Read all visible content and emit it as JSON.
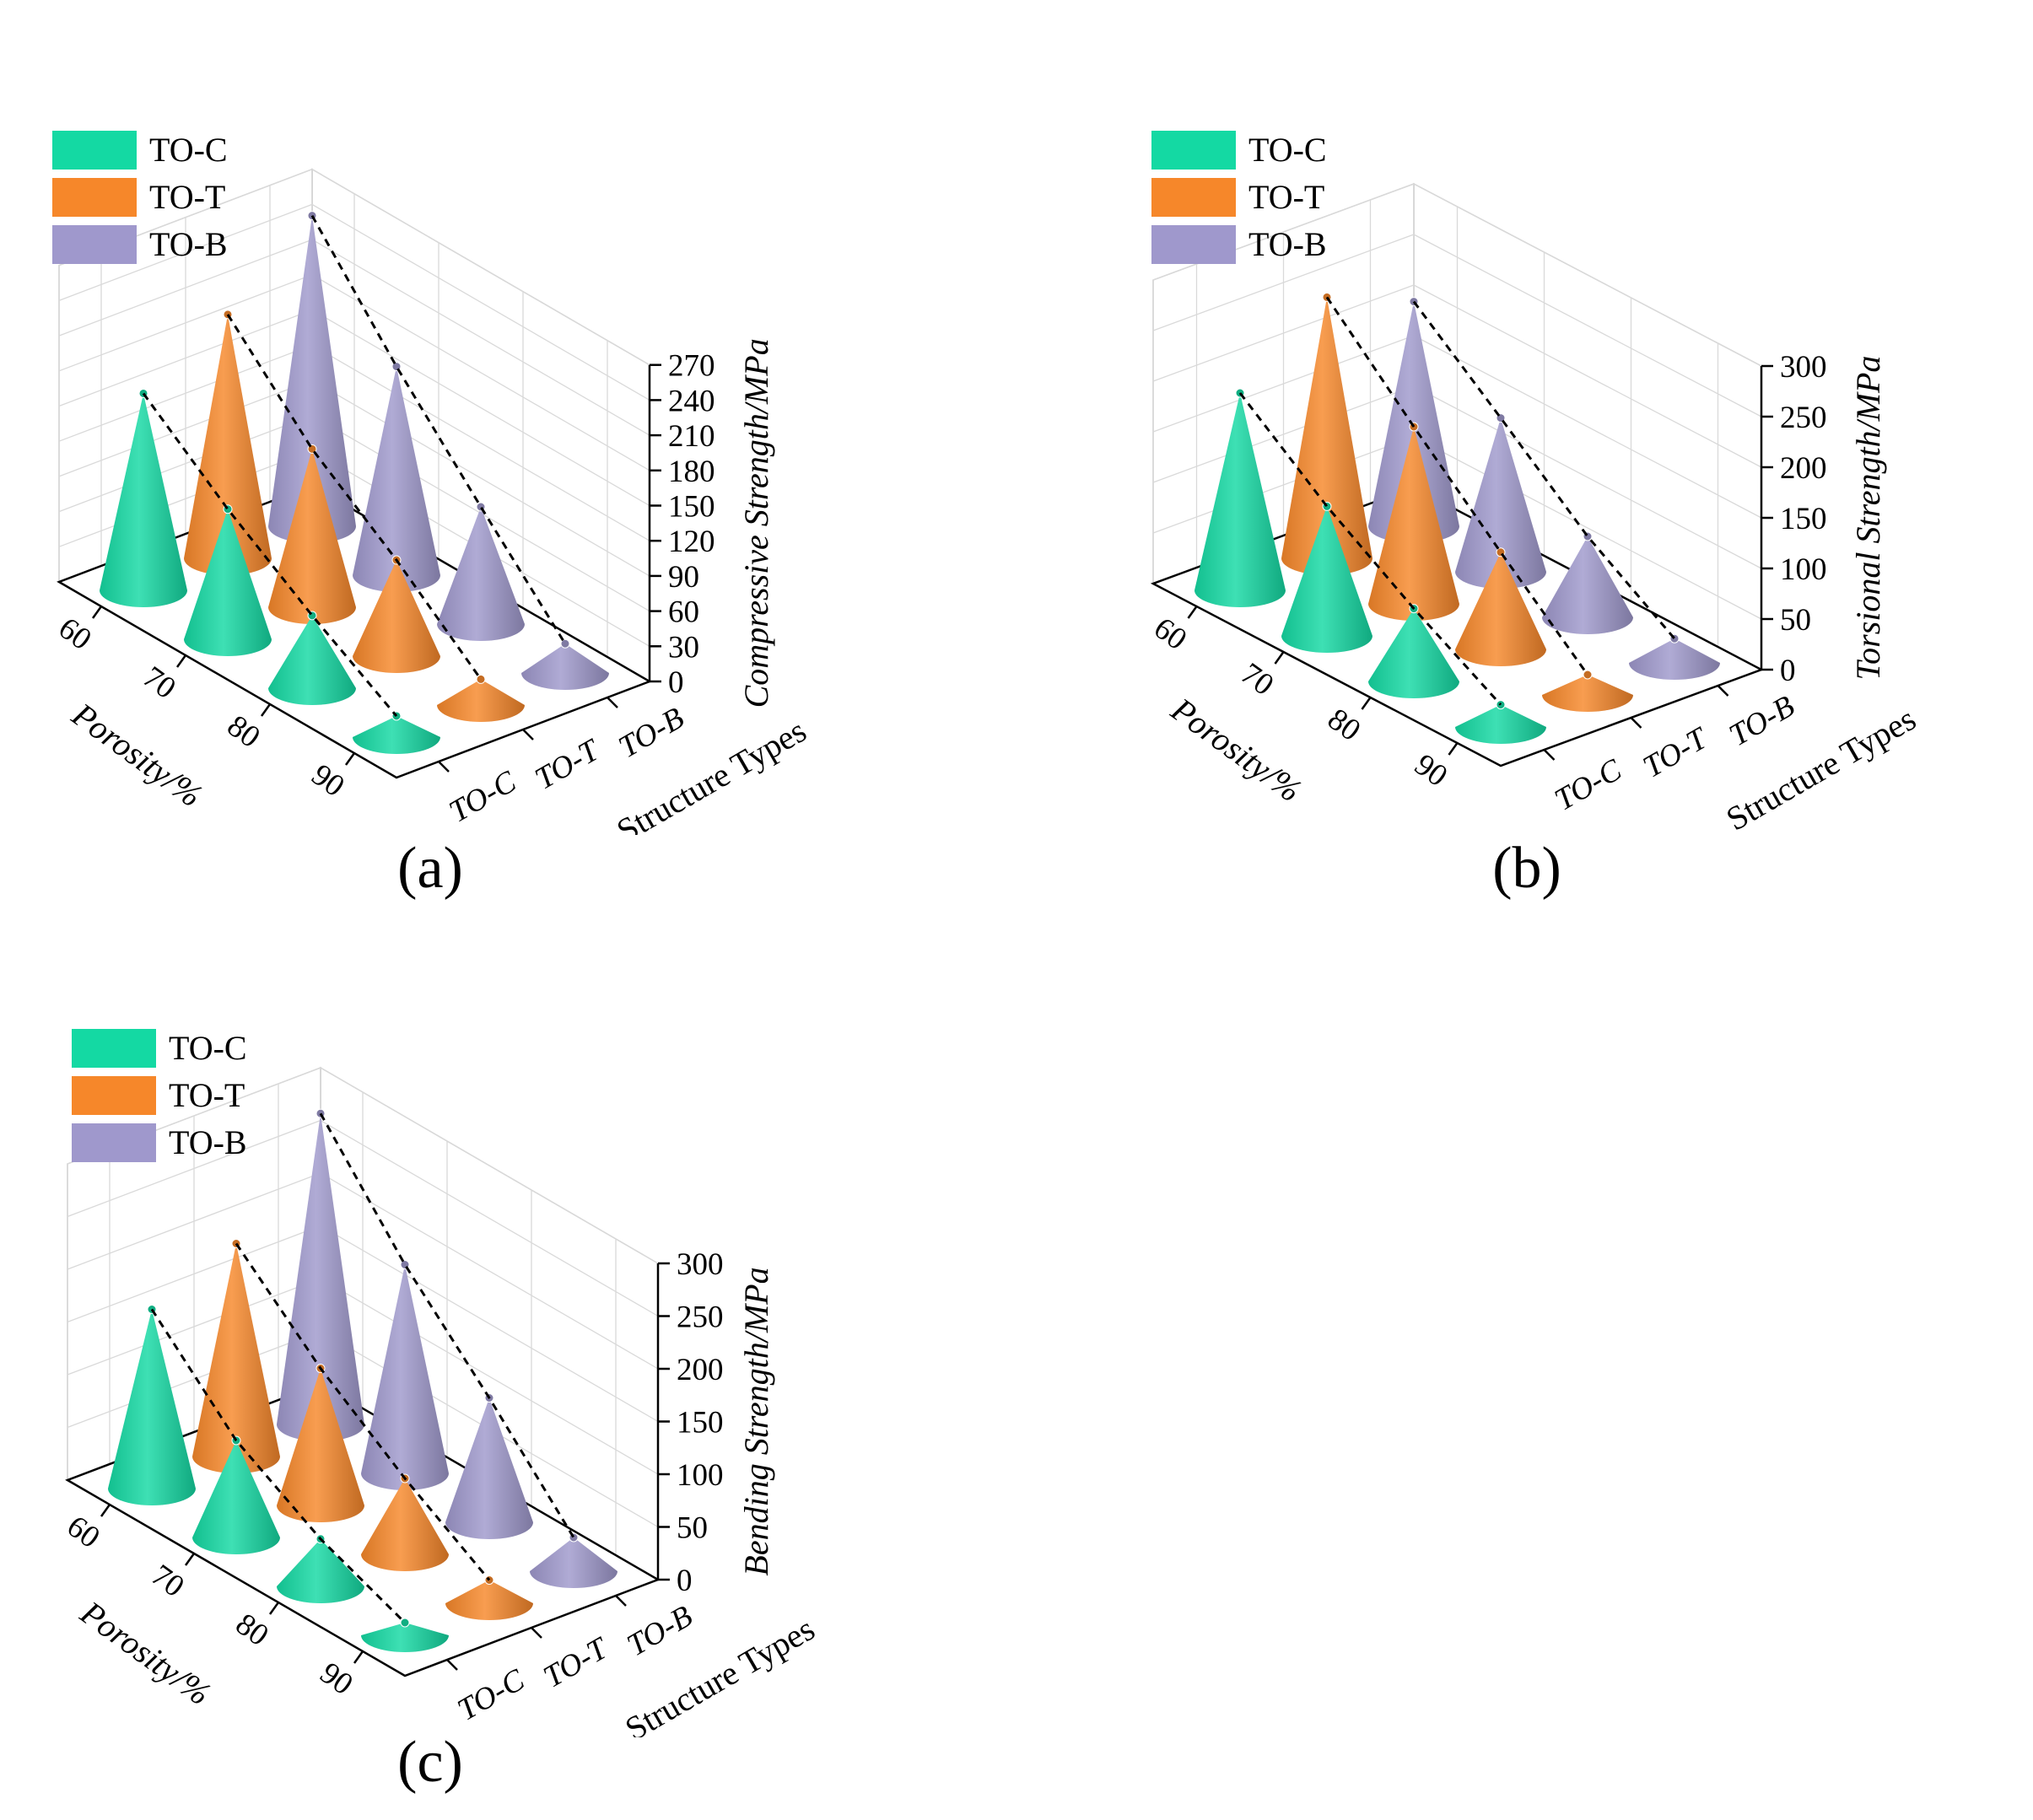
{
  "figure_labels": [
    "(a)",
    "(b)",
    "(c)"
  ],
  "colors": {
    "TO-C": "#14d9a3",
    "TO-T": "#f6872a",
    "TO-B": "#9f98cc",
    "dashed": "#000000"
  },
  "chart_data": [
    {
      "type": "3d-cone",
      "panel": "(a)",
      "zlabel": "Compressive Strength/MPa",
      "xlabel": "Porosity/%",
      "ylabel": "Structure Types",
      "x_ticks": [
        "60",
        "70",
        "80",
        "90"
      ],
      "y_ticks": [
        "TO-C",
        "TO-T",
        "TO-B"
      ],
      "z_ticks": [
        "0",
        "30",
        "60",
        "90",
        "120",
        "150",
        "180",
        "210",
        "240",
        "270"
      ],
      "zlim": [
        0,
        270
      ],
      "legend": [
        "TO-C",
        "TO-T",
        "TO-B"
      ],
      "series": [
        {
          "name": "TO-C",
          "values": [
            168,
            111,
            62,
            18
          ]
        },
        {
          "name": "TO-T",
          "values": [
            208,
            135,
            82,
            22
          ]
        },
        {
          "name": "TO-B",
          "values": [
            265,
            178,
            100,
            25
          ]
        }
      ]
    },
    {
      "type": "3d-cone",
      "panel": "(b)",
      "zlabel": "Torsional Strength/MPa",
      "xlabel": "Porosity/%",
      "ylabel": "Structure Types",
      "x_ticks": [
        "60",
        "70",
        "80",
        "90"
      ],
      "y_ticks": [
        "TO-C",
        "TO-T",
        "TO-B"
      ],
      "z_ticks": [
        "0",
        "50",
        "100",
        "150",
        "200",
        "250",
        "300"
      ],
      "zlim": [
        0,
        300
      ],
      "legend": [
        "TO-C",
        "TO-T",
        "TO-B"
      ],
      "series": [
        {
          "name": "TO-C",
          "values": [
            195,
            128,
            72,
            22
          ]
        },
        {
          "name": "TO-T",
          "values": [
            258,
            175,
            96,
            20
          ]
        },
        {
          "name": "TO-B",
          "values": [
            222,
            152,
            80,
            24
          ]
        }
      ]
    },
    {
      "type": "3d-cone",
      "panel": "(c)",
      "zlabel": "Bending Strength/MPa",
      "xlabel": "Porosity/%",
      "ylabel": "Structure Types",
      "x_ticks": [
        "60",
        "70",
        "80",
        "90"
      ],
      "y_ticks": [
        "TO-C",
        "TO-T",
        "TO-B"
      ],
      "z_ticks": [
        "0",
        "50",
        "100",
        "150",
        "200",
        "250",
        "300"
      ],
      "zlim": [
        0,
        300
      ],
      "legend": [
        "TO-C",
        "TO-T",
        "TO-B"
      ],
      "series": [
        {
          "name": "TO-C",
          "values": [
            170,
            92,
            45,
            12
          ]
        },
        {
          "name": "TO-T",
          "values": [
            202,
            130,
            72,
            22
          ]
        },
        {
          "name": "TO-B",
          "values": [
            295,
            198,
            118,
            32
          ]
        }
      ]
    }
  ]
}
